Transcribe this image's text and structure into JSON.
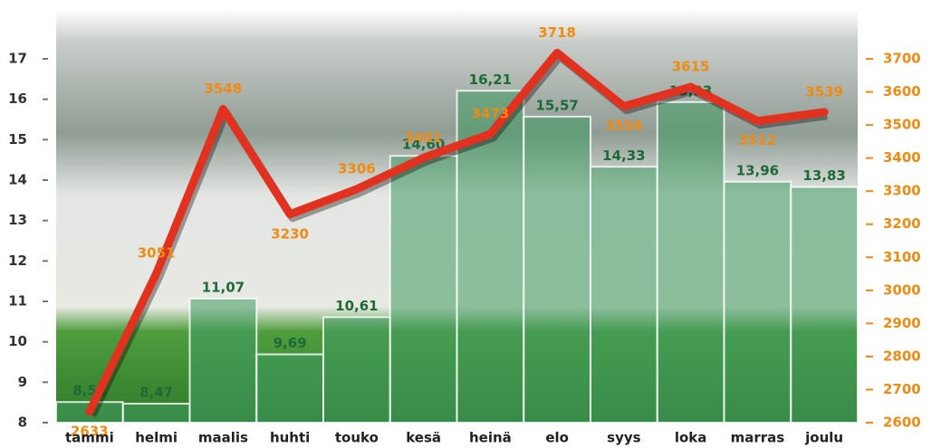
{
  "chart_data": {
    "type": "bar",
    "categories": [
      "tammi",
      "helmi",
      "maalis",
      "huhti",
      "touko",
      "kesä",
      "heinä",
      "elo",
      "syys",
      "loka",
      "marras",
      "joulu"
    ],
    "series": [
      {
        "type": "bar",
        "color": "#3f9a63",
        "values": [
          8.51,
          8.47,
          11.07,
          9.69,
          10.61,
          14.6,
          16.21,
          15.57,
          14.33,
          15.93,
          13.96,
          13.83
        ],
        "value_labels": [
          "8,51",
          "8,47",
          "11,07",
          "9,69",
          "10,61",
          "14,60",
          "16,21",
          "15,57",
          "14,33",
          "15,93",
          "13,96",
          "13,83"
        ]
      },
      {
        "type": "line",
        "axis": "y2",
        "color": "#e2321f",
        "values": [
          2633,
          3051,
          3548,
          3230,
          3306,
          3401,
          3473,
          3718,
          3556,
          3615,
          3512,
          3539
        ]
      }
    ],
    "ylim": [
      8,
      17
    ],
    "yticks": [
      8,
      9,
      10,
      11,
      12,
      13,
      14,
      15,
      16,
      17
    ],
    "y2lim": [
      2600,
      3700
    ],
    "y2ticks": [
      2600,
      2700,
      2800,
      2900,
      3000,
      3100,
      3200,
      3300,
      3400,
      3500,
      3600,
      3700
    ]
  }
}
